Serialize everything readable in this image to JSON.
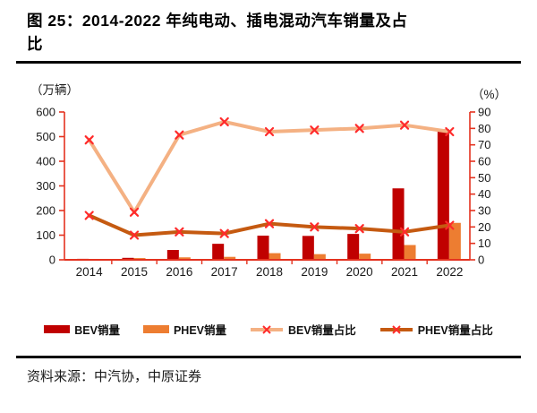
{
  "page": {
    "title_line1": "图 25：2014-2022 年纯电动、插电混动汽车销量及占",
    "title_line2": "比",
    "source_note": "资料来源：中汽协，中原证券"
  },
  "chart_data": {
    "type": "bar",
    "subtype": "combo-bar-line-dual-axis",
    "title": "2014-2022 年纯电动、插电混动汽车销量及占比",
    "categories": [
      "2014",
      "2015",
      "2016",
      "2017",
      "2018",
      "2019",
      "2020",
      "2021",
      "2022"
    ],
    "left_axis": {
      "unit_label": "（万辆）",
      "min": 0,
      "max": 600,
      "tick_step": 100,
      "ticks": [
        0,
        100,
        200,
        300,
        400,
        500,
        600
      ]
    },
    "right_axis": {
      "unit_label": "（%）",
      "min": 0,
      "max": 90,
      "tick_step": 10,
      "ticks": [
        0,
        10,
        20,
        30,
        40,
        50,
        60,
        70,
        80,
        90
      ]
    },
    "grid": false,
    "legend_position": "bottom",
    "series": [
      {
        "key": "bev-sales",
        "name": "BEV销量",
        "type": "bar",
        "axis": "left",
        "color": "#c00000",
        "values": [
          4,
          8,
          40,
          65,
          98,
          97,
          105,
          290,
          530
        ]
      },
      {
        "key": "phev-sales",
        "name": "PHEV销量",
        "type": "bar",
        "axis": "left",
        "color": "#ed7d31",
        "values": [
          3,
          7,
          10,
          12,
          27,
          23,
          25,
          60,
          150
        ]
      },
      {
        "key": "bev-share",
        "name": "BEV销量占比",
        "type": "line",
        "axis": "right",
        "color": "#f4b183",
        "values": [
          73,
          29,
          76,
          84,
          78,
          79,
          80,
          82,
          78
        ]
      },
      {
        "key": "phev-share",
        "name": "PHEV销量占比",
        "type": "line",
        "axis": "right",
        "color": "#c55a11",
        "values": [
          27,
          15,
          17,
          16,
          22,
          20,
          19,
          17,
          21
        ]
      }
    ],
    "colors": {
      "axis": "#e4321f",
      "marker": "#ff2b2b",
      "tick_label": "#1a1a1a"
    }
  }
}
